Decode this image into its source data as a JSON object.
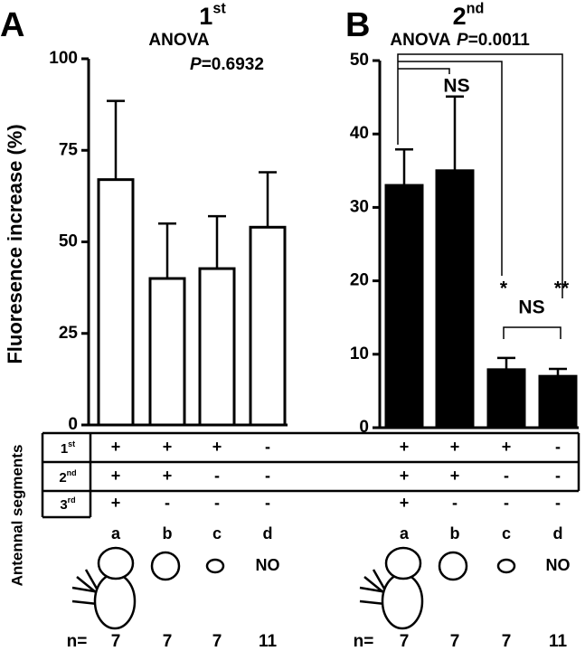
{
  "chart_data": [
    {
      "type": "bar",
      "panel": "A",
      "title": "1",
      "title_sup": "st",
      "subtitle": "ANOVA",
      "stat_label": "P",
      "stat_value": "=0.6932",
      "ylabel": "Fluoresence increase (%)",
      "categories": [
        "a",
        "b",
        "c",
        "d"
      ],
      "values": [
        67,
        40,
        42.7,
        54
      ],
      "errors": [
        21.5,
        15,
        14.3,
        15
      ],
      "color": "#ffffff",
      "ylim": [
        0,
        100
      ],
      "yticks": [
        0,
        25,
        50,
        75,
        100
      ],
      "segments": [
        [
          "+",
          "+",
          "+",
          "-"
        ],
        [
          "+",
          "+",
          "-",
          "-"
        ],
        [
          "+",
          "-",
          "-",
          "-"
        ]
      ],
      "absent_label": "NO",
      "n_label": "n=",
      "n": [
        7,
        7,
        7,
        11
      ]
    },
    {
      "type": "bar",
      "panel": "B",
      "title": "2",
      "title_sup": "nd",
      "subtitle": "ANOVA",
      "stat_label": "P",
      "stat_value": "=0.0011",
      "categories": [
        "a",
        "b",
        "c",
        "d"
      ],
      "values": [
        33,
        35,
        7.9,
        7
      ],
      "errors": [
        4.9,
        10.1,
        1.6,
        1
      ],
      "color": "#000000",
      "ylim": [
        0,
        50
      ],
      "yticks": [
        0,
        10,
        20,
        30,
        40,
        50
      ],
      "annotations": [
        "NS",
        "*",
        "NS",
        "**"
      ],
      "segments": [
        [
          "+",
          "+",
          "+",
          "-"
        ],
        [
          "+",
          "+",
          "-",
          "-"
        ],
        [
          "+",
          "-",
          "-",
          "-"
        ]
      ],
      "absent_label": "NO",
      "n_label": "n=",
      "n": [
        7,
        7,
        7,
        11
      ]
    }
  ],
  "table": {
    "label": "Antennal segments",
    "rows": [
      {
        "name": "1",
        "sup": "st"
      },
      {
        "name": "2",
        "sup": "nd"
      },
      {
        "name": "3",
        "sup": "rd"
      }
    ]
  }
}
